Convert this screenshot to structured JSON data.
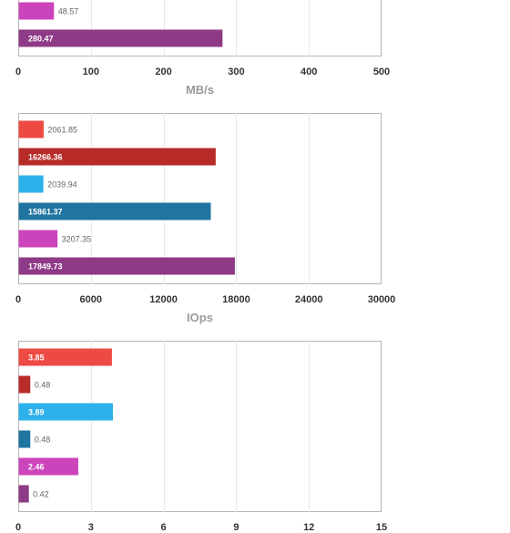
{
  "chart_data": [
    {
      "type": "bar",
      "orientation": "horizontal",
      "xlabel": "MB/s",
      "xlim": [
        0,
        500
      ],
      "ticks": [
        0,
        100,
        200,
        300,
        400,
        500
      ],
      "grid": true,
      "partially_visible": true,
      "bars": [
        {
          "value": 48.57,
          "label": "48.57",
          "color": "#cc44bb"
        },
        {
          "value": 280.47,
          "label": "280.47",
          "color": "#8e3a86"
        }
      ]
    },
    {
      "type": "bar",
      "orientation": "horizontal",
      "xlabel": "IOps",
      "xlim": [
        0,
        30000
      ],
      "ticks": [
        0,
        6000,
        12000,
        18000,
        24000,
        30000
      ],
      "grid": true,
      "bars": [
        {
          "value": 2061.85,
          "label": "2061.85",
          "color": "#ee4a44"
        },
        {
          "value": 16266.36,
          "label": "16266.36",
          "color": "#b72b28"
        },
        {
          "value": 2039.94,
          "label": "2039.94",
          "color": "#2db1ea"
        },
        {
          "value": 15861.37,
          "label": "15861.37",
          "color": "#1f74a0"
        },
        {
          "value": 3207.35,
          "label": "3207.35",
          "color": "#cc44bb"
        },
        {
          "value": 17849.73,
          "label": "17849.73",
          "color": "#8e3a86"
        }
      ]
    },
    {
      "type": "bar",
      "orientation": "horizontal",
      "xlabel": "",
      "xlim": [
        0,
        15
      ],
      "ticks": [
        0,
        3,
        6,
        9,
        12,
        15
      ],
      "grid": true,
      "bars": [
        {
          "value": 3.85,
          "label": "3.85",
          "color": "#ee4a44"
        },
        {
          "value": 0.48,
          "label": "0.48",
          "color": "#b72b28"
        },
        {
          "value": 3.89,
          "label": "3.89",
          "color": "#2db1ea"
        },
        {
          "value": 0.48,
          "label": "0.48",
          "color": "#1f74a0"
        },
        {
          "value": 2.46,
          "label": "2.46",
          "color": "#cc44bb"
        },
        {
          "value": 0.42,
          "label": "0.42",
          "color": "#8e3a86"
        }
      ]
    }
  ]
}
